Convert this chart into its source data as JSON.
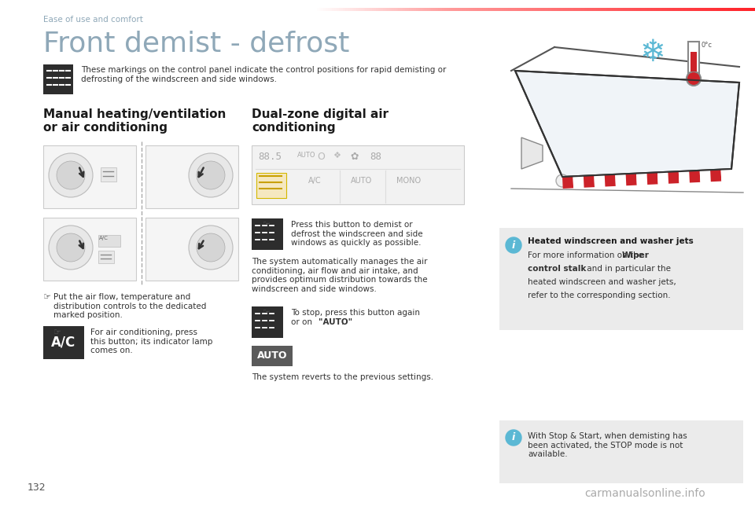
{
  "page_bg": "#ffffff",
  "header_text": "Ease of use and comfort",
  "header_color": "#8fa8b8",
  "title": "Front demist - defrost",
  "title_color": "#8fa8b8",
  "title_fontsize": 26,
  "intro_text": "These markings on the control panel indicate the control positions for rapid demisting or\ndefrosting of the windscreen and side windows.",
  "section1_title": "Manual heating/ventilation\nor air conditioning",
  "section2_title": "Dual-zone digital air\nconditioning",
  "bullet1": "Put the air flow, temperature and\ndistribution controls to the dedicated\nmarked position.",
  "bullet2": "For air conditioning, press\nthis button; its indicator lamp\ncomes on.",
  "bullet3": "Press this button to demist or\ndefrost the windscreen and side\nwindows as quickly as possible.",
  "body1": "The system automatically manages the air\nconditioning, air flow and air intake, and\nprovides optimum distribution towards the\nwindscreen and side windows.",
  "bullet4_pre": "To stop, press this button again\nor on ",
  "bullet4_bold": "\"AUTO\"",
  "bullet4_post": ".",
  "body2": "The system reverts to the previous settings.",
  "info1_title": "Heated windscreen and washer jets",
  "info1_line1": "For more information on the ",
  "info1_bold1": "Wiper",
  "info1_line2": "control stalk",
  "info1_line2b": " and in particular the",
  "info1_line3": "heated windscreen and washer jets,",
  "info1_line4": "refer to the corresponding section.",
  "info2": "With Stop & Start, when demisting has\nbeen activated, the STOP mode is not\navailable.",
  "page_number": "132",
  "watermark": "carmanualsonline.info",
  "icon_dark_bg": "#2d2d2d",
  "icon_text_color": "#ffffff",
  "ac_label": "A/C",
  "auto_label": "AUTO",
  "info_bg": "#ebebeb",
  "info_i_color": "#5bb8d4"
}
